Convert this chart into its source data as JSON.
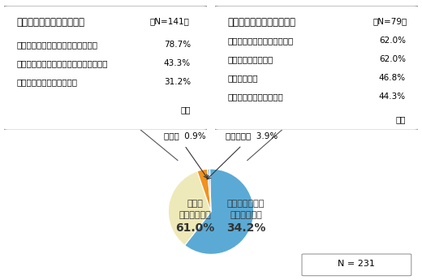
{
  "pie_values": [
    61.0,
    34.2,
    3.9,
    0.9
  ],
  "pie_colors": [
    "#5BAAD5",
    "#EEE9B8",
    "#F0921E",
    "#A8C8E8"
  ],
  "pie_startangle": 91.62,
  "box1_title": "主な未読理由（複数回答）",
  "box1_n": "（N=141）",
  "box1_items": [
    [
      "・内容が多すぎて読む気にならない",
      "78.7%"
    ],
    [
      "・専門用語が多すぎるので理解しづらい",
      "43.3%"
    ],
    [
      "・重要な箇所がわからない",
      "31.2%"
    ]
  ],
  "box1_footer": "など",
  "box2_title": "主な閲読項目（複数回答）",
  "box2_n": "（N=79）",
  "box2_items": [
    [
      "・ファンドの性格・運用方针",
      "62.0%"
    ],
    [
      "・ファンドのリスク",
      "62.0%"
    ],
    [
      "・運用の実績",
      "46.8%"
    ],
    [
      "・巻頭のファンドの概要",
      "44.3%"
    ]
  ],
  "box2_footer": "など",
  "label_amari": "あまり\n読まなかった",
  "label_amari_pct": "61.0%",
  "label_hitsuyou": "必要と思われる\n項目を読んだ",
  "label_hitsuyou_pct": "34.2%",
  "label_zenbu": "全部読んだ",
  "label_zenbu_pct": "3.9%",
  "label_mukaitou": "無回答",
  "label_mukaitou_pct": "0.9%",
  "n_label": "N = 231",
  "background_color": "#ffffff"
}
